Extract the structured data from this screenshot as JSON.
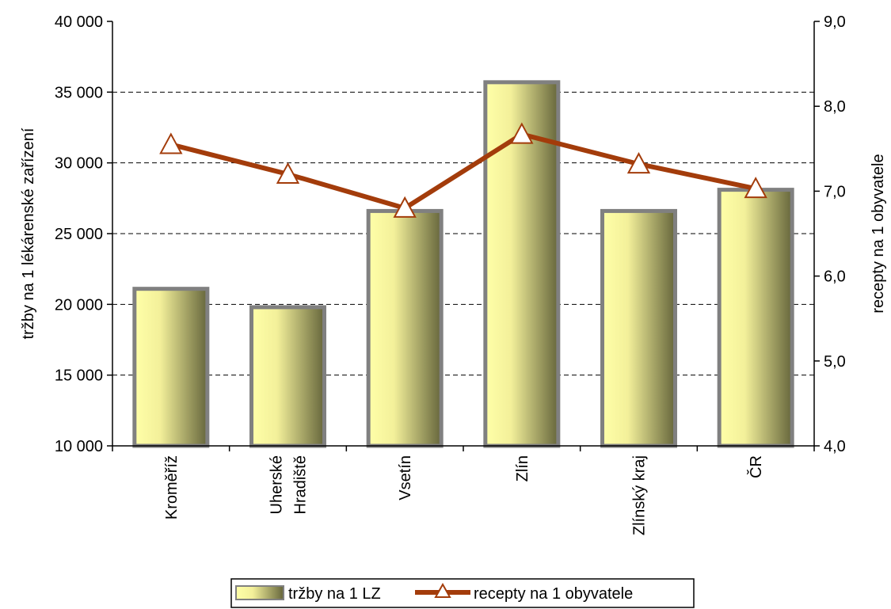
{
  "chart_data": {
    "type": "bar",
    "categories": [
      "Kroměříž",
      "Uherské Hradiště",
      "Vsetín",
      "Zlín",
      "Zlínský kraj",
      "ČR"
    ],
    "category_lines": [
      [
        "Kroměříž"
      ],
      [
        "Uherské",
        "Hradiště"
      ],
      [
        "Vsetín"
      ],
      [
        "Zlín"
      ],
      [
        "Zlínský kraj"
      ],
      [
        "ČR"
      ]
    ],
    "series": [
      {
        "name": "tržby na 1 LZ",
        "type": "bar",
        "axis": "left",
        "values": [
          21100,
          19800,
          26600,
          35700,
          26600,
          28100
        ]
      },
      {
        "name": "recepty na 1 obyvatele",
        "type": "line",
        "axis": "right",
        "values": [
          7.55,
          7.2,
          6.8,
          7.67,
          7.32,
          7.03
        ]
      }
    ],
    "ylabel": "tržby na 1 lékárenské zařízení",
    "y2label": "recepty na 1 obyvatele",
    "ylim": [
      10000,
      40000
    ],
    "y2lim": [
      4.0,
      9.0
    ],
    "y_ticks": [
      "10 000",
      "15 000",
      "20 000",
      "25 000",
      "30 000",
      "35 000",
      "40 000"
    ],
    "y2_ticks": [
      "4,0",
      "5,0",
      "6,0",
      "7,0",
      "8,0",
      "9,0"
    ],
    "grid": "horizontal dashed",
    "legend": "bottom",
    "colors": {
      "bar_light": "#ffff99",
      "bar_dark": "#6b6b3f",
      "bar_border": "#808080",
      "line": "#a33c0b",
      "marker_fill": "#ffffff"
    }
  }
}
